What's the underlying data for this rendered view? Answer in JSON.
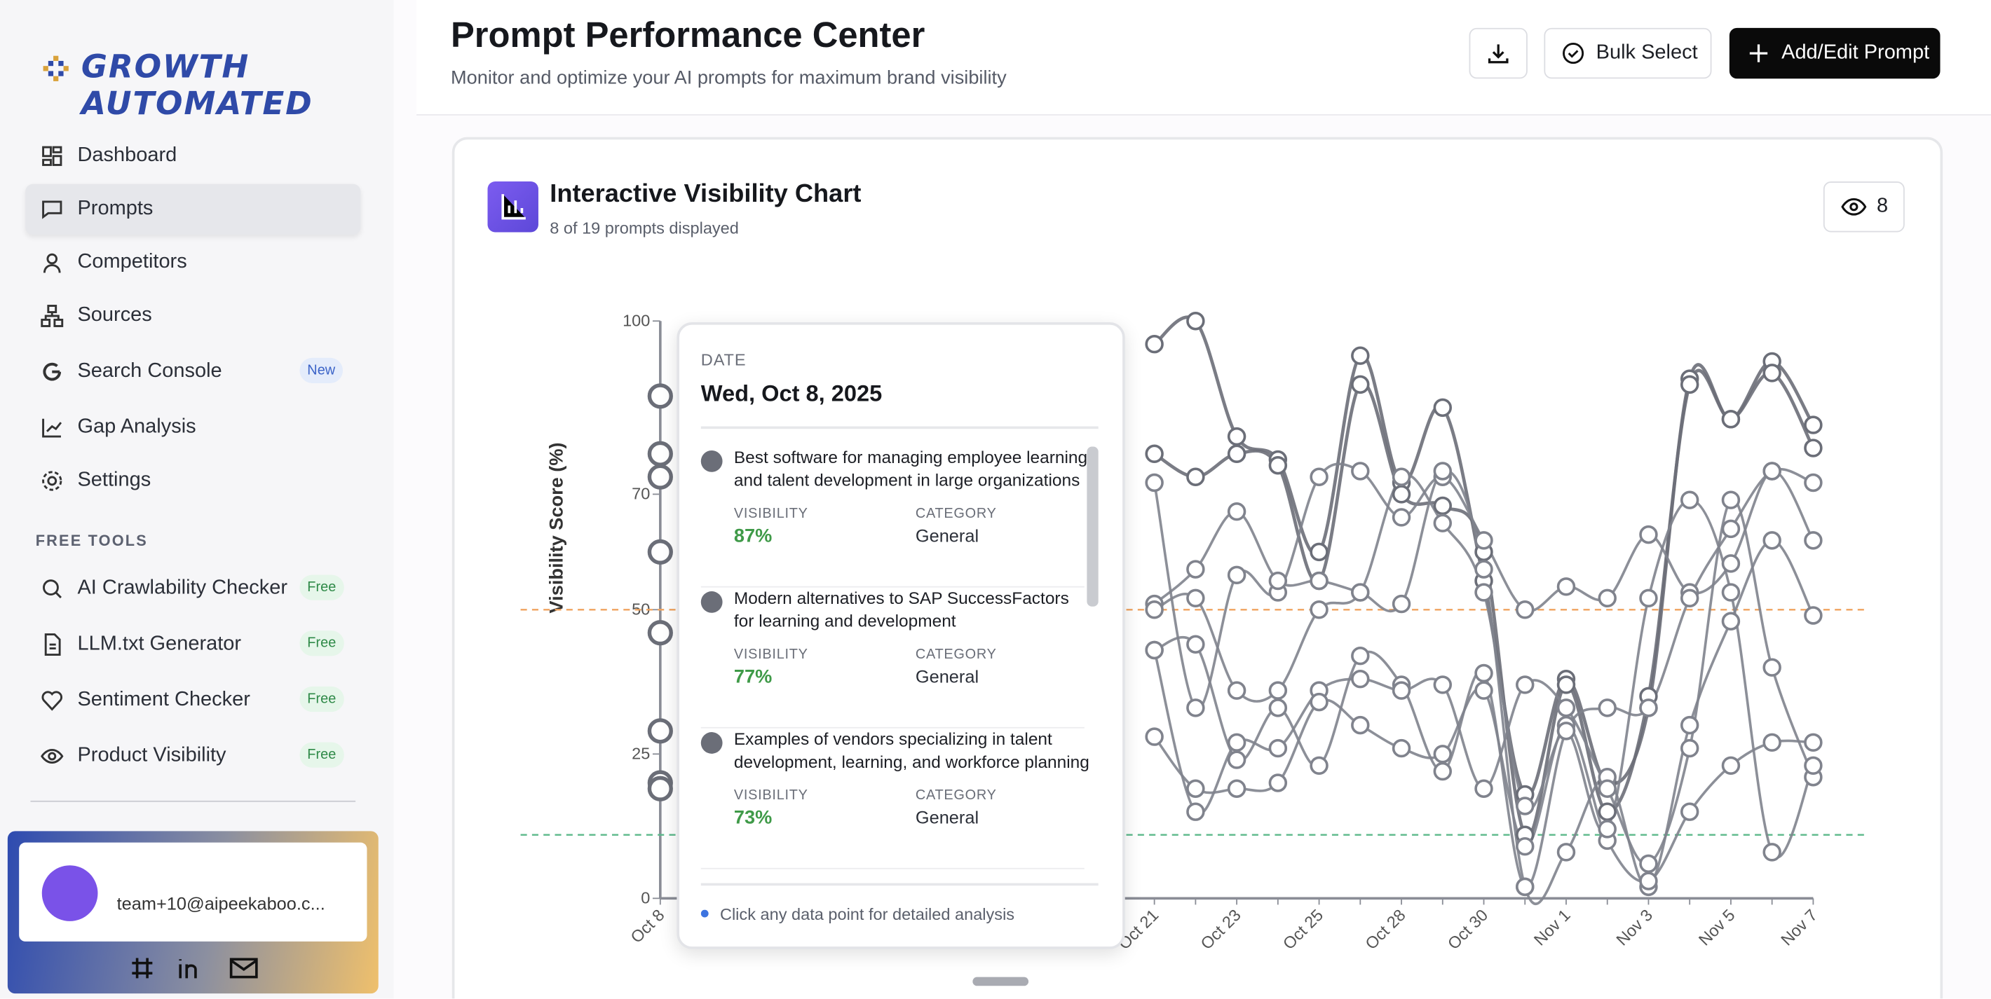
{
  "sidebar": {
    "brand": "GROWTH AUTOMATED",
    "nav": [
      {
        "label": "Dashboard"
      },
      {
        "label": "Prompts"
      },
      {
        "label": "Competitors"
      },
      {
        "label": "Sources"
      },
      {
        "label": "Search Console",
        "badge": "New"
      },
      {
        "label": "Gap Analysis"
      },
      {
        "label": "Settings"
      }
    ],
    "free_tools_heading": "FREE TOOLS",
    "tools": [
      {
        "label": "AI Crawlability Checker",
        "badge": "Free"
      },
      {
        "label": "LLM.txt Generator",
        "badge": "Free"
      },
      {
        "label": "Sentiment Checker",
        "badge": "Free"
      },
      {
        "label": "Product Visibility",
        "badge": "Free"
      }
    ],
    "user": "team+10@aipeekaboo.c..."
  },
  "header": {
    "title": "Prompt Performance Center",
    "subtitle": "Monitor and optimize your AI prompts for maximum brand visibility",
    "buttons": [
      "Bulk Select",
      "Add/Edit Prompt"
    ]
  },
  "card": {
    "title": "Interactive Visibility Chart",
    "subtitle": "8 of 19 prompts displayed",
    "visible_count": "8"
  },
  "chart_data": {
    "type": "line",
    "y_label": "Visibility Score (%)",
    "categories": [
      "Oct 8",
      null,
      null,
      null,
      null,
      null,
      null,
      null,
      null,
      null,
      null,
      null,
      "Oct 21",
      null,
      "Oct 23",
      null,
      "Oct 25",
      null,
      "Oct 28",
      null,
      "Oct 30",
      null,
      "Nov 1",
      null,
      "Nov 3",
      null,
      "Nov 5",
      null,
      "Nov 7"
    ],
    "ylim": [
      0,
      100
    ],
    "yticks": [
      0,
      25,
      50,
      70,
      100
    ],
    "reference_lines": [
      {
        "value": 50,
        "color": "#f0a35e"
      },
      {
        "value": 11,
        "color": "#5bb88a"
      }
    ],
    "series": [
      {
        "color": "#6b6e78",
        "values": [
          87,
          null,
          null,
          null,
          null,
          null,
          null,
          null,
          null,
          null,
          null,
          null,
          96,
          100,
          80,
          76,
          60,
          94,
          72,
          85,
          55,
          18,
          38,
          20,
          33,
          90,
          83,
          93,
          82
        ]
      },
      {
        "color": "#6b6e78",
        "values": [
          77,
          null,
          null,
          null,
          null,
          null,
          null,
          null,
          null,
          null,
          null,
          null,
          77,
          73,
          77,
          75,
          55,
          89,
          70,
          68,
          60,
          11,
          37,
          15,
          35,
          89,
          83,
          91,
          78
        ]
      },
      {
        "color": "#80838d",
        "values": [
          73,
          null,
          null,
          null,
          null,
          null,
          null,
          null,
          null,
          null,
          null,
          null,
          72,
          33,
          56,
          53,
          73,
          74,
          66,
          73,
          62,
          50,
          54,
          52,
          63,
          53,
          58,
          74,
          62
        ]
      },
      {
        "color": "#80838d",
        "values": [
          60,
          null,
          null,
          null,
          null,
          null,
          null,
          null,
          null,
          null,
          null,
          null,
          51,
          57,
          67,
          55,
          55,
          53,
          51,
          74,
          57,
          2,
          8,
          21,
          2,
          30,
          48,
          62,
          49
        ]
      },
      {
        "color": "#80838d",
        "values": [
          46,
          null,
          null,
          null,
          null,
          null,
          null,
          null,
          null,
          null,
          null,
          null,
          43,
          44,
          24,
          33,
          23,
          42,
          37,
          22,
          39,
          2,
          29,
          33,
          33,
          52,
          64,
          74,
          72
        ]
      },
      {
        "color": "#80838d",
        "values": [
          29,
          null,
          null,
          null,
          null,
          null,
          null,
          null,
          null,
          null,
          null,
          null,
          43,
          15,
          27,
          26,
          36,
          38,
          36,
          37,
          19,
          37,
          33,
          19,
          6,
          26,
          69,
          40,
          21
        ]
      },
      {
        "color": "#80838d",
        "values": [
          20,
          null,
          null,
          null,
          null,
          null,
          null,
          null,
          null,
          null,
          null,
          null,
          28,
          19,
          19,
          20,
          34,
          30,
          26,
          25,
          36,
          9,
          30,
          10,
          3,
          15,
          23,
          27,
          27
        ]
      },
      {
        "color": "#80838d",
        "values": [
          19,
          null,
          null,
          null,
          null,
          null,
          null,
          null,
          null,
          null,
          null,
          null,
          50,
          52,
          36,
          36,
          50,
          53,
          73,
          65,
          53,
          16,
          29,
          12,
          52,
          69,
          53,
          8,
          23
        ]
      }
    ]
  },
  "tooltip": {
    "heading": "DATE",
    "date": "Wed, Oct 8, 2025",
    "visibility_label": "VISIBILITY",
    "category_label": "CATEGORY",
    "items": [
      {
        "prompt": "Best software for managing employee learning and talent development in large organizations",
        "visibility": "87%",
        "category": "General"
      },
      {
        "prompt": "Modern alternatives to SAP SuccessFactors for learning and development",
        "visibility": "77%",
        "category": "General"
      },
      {
        "prompt": "Examples of vendors specializing in talent development, learning, and workforce planning",
        "visibility": "73%",
        "category": "General"
      }
    ],
    "footer": "Click any data point for detailed analysis"
  }
}
